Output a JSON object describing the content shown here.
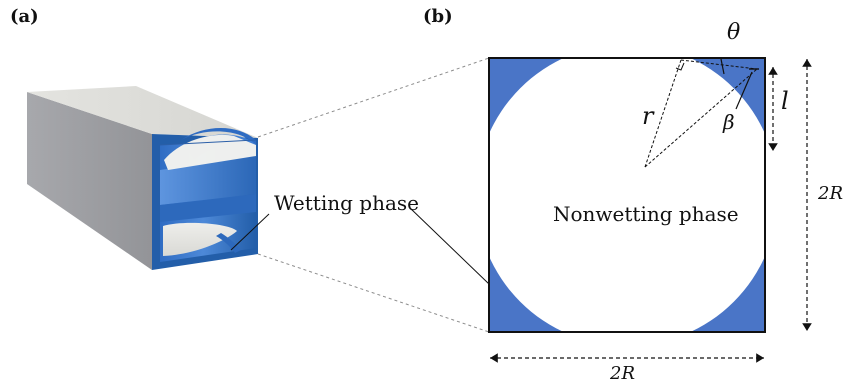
{
  "panels": {
    "a": {
      "label": "(a)"
    },
    "b": {
      "label": "(b)"
    }
  },
  "annotations": {
    "wetting_phase": "Wetting phase",
    "nonwetting_phase": "Nonwetting phase",
    "theta": "θ",
    "r": "r",
    "beta": "β",
    "l": "l",
    "two_r_right": "2R",
    "two_r_bottom": "2R"
  },
  "colors": {
    "wetting_phase": "#4A75C7",
    "tube_blue": "#3E7CD0",
    "tube_gray": "#9FA0A4",
    "tube_top": "#DCDDD9",
    "outline": "#111111"
  }
}
